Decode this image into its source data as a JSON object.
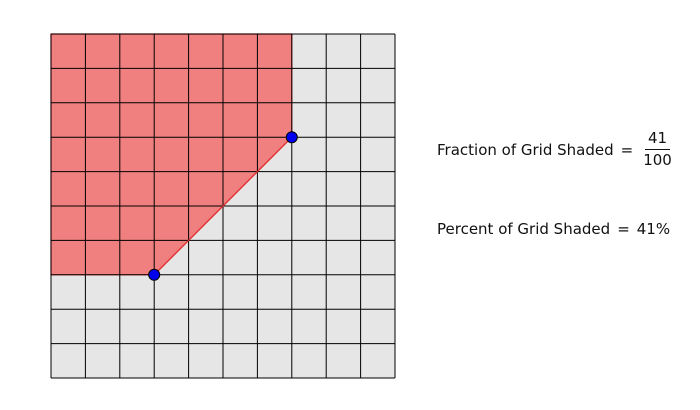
{
  "grid": {
    "rows": 10,
    "cols": 10,
    "grid_color": "#e6e6e6",
    "line_color": "#000000",
    "shade_color": "#f08080",
    "shade_edge_color": "#e03030",
    "point_color": "#0000ee",
    "shaded_region_vertices": [
      [
        0,
        10
      ],
      [
        7,
        10
      ],
      [
        7,
        7
      ],
      [
        3,
        3
      ],
      [
        0,
        3
      ]
    ],
    "points": [
      {
        "label": "upper-point",
        "x": 7,
        "y": 7
      },
      {
        "label": "lower-point",
        "x": 3,
        "y": 3
      }
    ]
  },
  "fraction": {
    "label": "Fraction of Grid Shaded",
    "equals": "=",
    "numerator": "41",
    "denominator": "100"
  },
  "percent": {
    "label": "Percent of Grid Shaded",
    "equals": "=",
    "value": "41%"
  }
}
